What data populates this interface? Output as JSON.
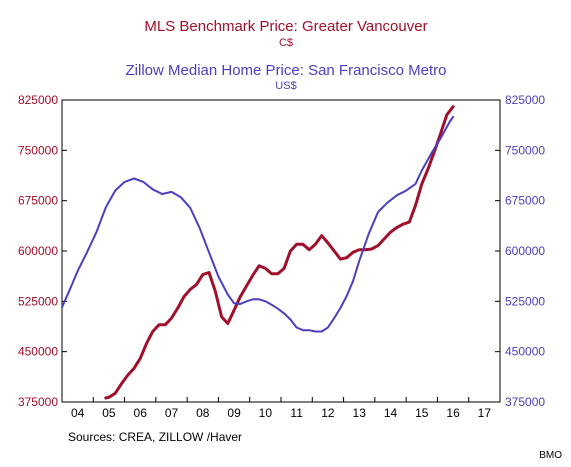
{
  "chart_data": {
    "type": "line",
    "titles": [
      {
        "text": "MLS Benchmark Price: Greater Vancouver",
        "color": "#a0102a"
      },
      {
        "text": "C$",
        "color": "#a0102a"
      },
      {
        "text": "Zillow Median Home Price: San Francisco Metro",
        "color": "#4b3fbf"
      },
      {
        "text": "US$",
        "color": "#4b3fbf"
      }
    ],
    "x_axis": {
      "range": [
        2003.5,
        2017.5
      ],
      "tick_labels": [
        "04",
        "05",
        "06",
        "07",
        "08",
        "09",
        "10",
        "11",
        "12",
        "13",
        "14",
        "15",
        "16",
        "17"
      ],
      "tick_values": [
        2004,
        2005,
        2006,
        2007,
        2008,
        2009,
        2010,
        2011,
        2012,
        2013,
        2014,
        2015,
        2016,
        2017
      ]
    },
    "y_left": {
      "range": [
        375000,
        825000
      ],
      "ticks": [
        375000,
        450000,
        525000,
        600000,
        675000,
        750000,
        825000
      ],
      "tick_labels": [
        "375000",
        "450000",
        "525000",
        "600000",
        "675000",
        "750000",
        "825000"
      ],
      "color": "#a0102a"
    },
    "y_right": {
      "range": [
        375000,
        825000
      ],
      "ticks": [
        375000,
        450000,
        525000,
        600000,
        675000,
        750000,
        825000
      ],
      "tick_labels": [
        "375000",
        "450000",
        "525000",
        "600000",
        "675000",
        "750000",
        "825000"
      ],
      "color": "#4b3fbf"
    },
    "grid": false,
    "series": [
      {
        "name": "MLS Benchmark Price: Greater Vancouver",
        "axis": "left",
        "color": "#a0102a",
        "x": [
          2004.9,
          2005.0,
          2005.2,
          2005.4,
          2005.6,
          2005.8,
          2006.0,
          2006.2,
          2006.4,
          2006.6,
          2006.8,
          2007.0,
          2007.2,
          2007.4,
          2007.6,
          2007.8,
          2008.0,
          2008.2,
          2008.4,
          2008.6,
          2008.8,
          2009.0,
          2009.2,
          2009.4,
          2009.6,
          2009.8,
          2010.0,
          2010.2,
          2010.4,
          2010.6,
          2010.8,
          2011.0,
          2011.2,
          2011.4,
          2011.6,
          2011.8,
          2012.0,
          2012.2,
          2012.4,
          2012.6,
          2012.8,
          2013.0,
          2013.2,
          2013.4,
          2013.6,
          2013.8,
          2014.0,
          2014.2,
          2014.4,
          2014.6,
          2014.8,
          2015.0,
          2015.2,
          2015.4,
          2015.6,
          2015.8,
          2016.0
        ],
        "y": [
          381000,
          382000,
          388000,
          402000,
          415000,
          425000,
          440000,
          462000,
          480000,
          490000,
          490000,
          500000,
          515000,
          532000,
          543000,
          550000,
          565000,
          568000,
          540000,
          502000,
          492000,
          512000,
          532000,
          548000,
          564000,
          578000,
          574000,
          566000,
          566000,
          574000,
          600000,
          610000,
          610000,
          602000,
          610000,
          623000,
          612000,
          600000,
          588000,
          590000,
          598000,
          602000,
          602000,
          603000,
          608000,
          618000,
          628000,
          635000,
          640000,
          643000,
          668000,
          700000,
          722000,
          748000,
          775000,
          803000,
          815000
        ]
      },
      {
        "name": "Zillow Median Home Price: San Francisco Metro",
        "axis": "right",
        "color": "#4b3fbf",
        "x": [
          2003.5,
          2003.8,
          2004.0,
          2004.3,
          2004.6,
          2004.9,
          2005.2,
          2005.5,
          2005.8,
          2006.1,
          2006.4,
          2006.7,
          2007.0,
          2007.3,
          2007.6,
          2007.9,
          2008.2,
          2008.5,
          2008.8,
          2009.0,
          2009.2,
          2009.4,
          2009.6,
          2009.8,
          2010.0,
          2010.2,
          2010.4,
          2010.6,
          2010.8,
          2011.0,
          2011.2,
          2011.4,
          2011.6,
          2011.8,
          2012.0,
          2012.2,
          2012.4,
          2012.6,
          2012.8,
          2013.0,
          2013.3,
          2013.6,
          2013.9,
          2014.2,
          2014.5,
          2014.8,
          2015.0,
          2015.3,
          2015.6,
          2015.9,
          2016.0
        ],
        "y": [
          516000,
          548000,
          570000,
          598000,
          628000,
          665000,
          690000,
          703000,
          708000,
          703000,
          692000,
          685000,
          688000,
          680000,
          664000,
          634000,
          598000,
          562000,
          535000,
          522000,
          521000,
          525000,
          528000,
          528000,
          525000,
          520000,
          514000,
          507000,
          498000,
          486000,
          482000,
          482000,
          480000,
          480000,
          486000,
          500000,
          515000,
          533000,
          555000,
          585000,
          625000,
          658000,
          672000,
          683000,
          690000,
          700000,
          720000,
          745000,
          768000,
          793000,
          800000
        ]
      }
    ],
    "source_note": "Sources:  CREA, ZILLOW /Haver",
    "credit": "BMO"
  }
}
